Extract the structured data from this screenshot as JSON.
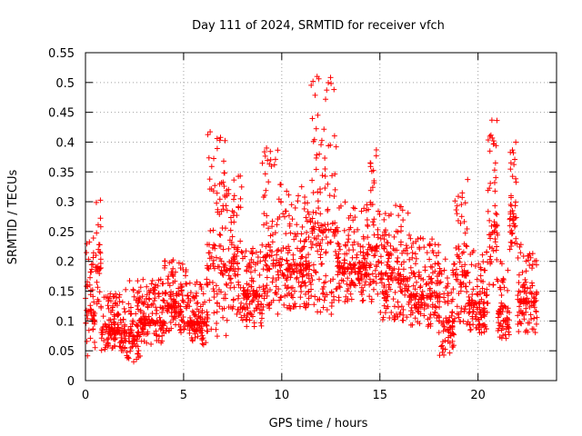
{
  "chart_data": {
    "type": "scatter",
    "title": "Day 111 of 2024, SRMTID for receiver vfch",
    "xlabel": "GPS time / hours",
    "ylabel": "SRMTID / TECUs",
    "xlim": [
      0,
      24
    ],
    "ylim": [
      0,
      0.55
    ],
    "xticks": [
      0,
      5,
      10,
      15,
      20
    ],
    "yticks": [
      0,
      0.05,
      0.1,
      0.15,
      0.2,
      0.25,
      0.3,
      0.35,
      0.4,
      0.45,
      0.5,
      0.55
    ],
    "xtick_labels": [
      "0",
      "5",
      "10",
      "15",
      "20"
    ],
    "ytick_labels": [
      "0",
      "0.05",
      "0.1",
      "0.15",
      "0.2",
      "0.25",
      "0.3",
      "0.35",
      "0.4",
      "0.45",
      "0.5",
      "0.55"
    ],
    "grid": true,
    "marker": "+",
    "color": "#ff0000",
    "series": [
      {
        "name": "SRMTID",
        "profile": [
          {
            "t_start": 0.0,
            "t_end": 0.5,
            "low": 0.04,
            "high": 0.26
          },
          {
            "t_start": 0.5,
            "t_end": 0.8,
            "low": 0.12,
            "high": 0.32
          },
          {
            "t_start": 0.8,
            "t_end": 2.0,
            "low": 0.05,
            "high": 0.15
          },
          {
            "t_start": 2.0,
            "t_end": 2.8,
            "low": 0.03,
            "high": 0.17
          },
          {
            "t_start": 2.8,
            "t_end": 4.0,
            "low": 0.06,
            "high": 0.17
          },
          {
            "t_start": 4.0,
            "t_end": 5.2,
            "low": 0.08,
            "high": 0.21
          },
          {
            "t_start": 5.2,
            "t_end": 6.2,
            "low": 0.06,
            "high": 0.17
          },
          {
            "t_start": 6.2,
            "t_end": 7.2,
            "low": 0.07,
            "high": 0.42
          },
          {
            "t_start": 7.2,
            "t_end": 8.0,
            "low": 0.1,
            "high": 0.35
          },
          {
            "t_start": 8.0,
            "t_end": 9.0,
            "low": 0.09,
            "high": 0.24
          },
          {
            "t_start": 9.0,
            "t_end": 9.8,
            "low": 0.11,
            "high": 0.4
          },
          {
            "t_start": 9.8,
            "t_end": 11.5,
            "low": 0.12,
            "high": 0.33
          },
          {
            "t_start": 11.5,
            "t_end": 12.8,
            "low": 0.11,
            "high": 0.52
          },
          {
            "t_start": 12.8,
            "t_end": 14.5,
            "low": 0.13,
            "high": 0.3
          },
          {
            "t_start": 14.5,
            "t_end": 15.0,
            "low": 0.13,
            "high": 0.4
          },
          {
            "t_start": 15.0,
            "t_end": 16.5,
            "low": 0.1,
            "high": 0.3
          },
          {
            "t_start": 16.5,
            "t_end": 18.0,
            "low": 0.09,
            "high": 0.24
          },
          {
            "t_start": 18.0,
            "t_end": 18.8,
            "low": 0.04,
            "high": 0.21
          },
          {
            "t_start": 18.8,
            "t_end": 19.5,
            "low": 0.09,
            "high": 0.34
          },
          {
            "t_start": 19.5,
            "t_end": 20.5,
            "low": 0.08,
            "high": 0.22
          },
          {
            "t_start": 20.5,
            "t_end": 21.0,
            "low": 0.16,
            "high": 0.45
          },
          {
            "t_start": 21.0,
            "t_end": 21.6,
            "low": 0.07,
            "high": 0.2
          },
          {
            "t_start": 21.6,
            "t_end": 22.0,
            "low": 0.22,
            "high": 0.4
          },
          {
            "t_start": 22.0,
            "t_end": 23.0,
            "low": 0.08,
            "high": 0.23
          }
        ]
      }
    ]
  }
}
